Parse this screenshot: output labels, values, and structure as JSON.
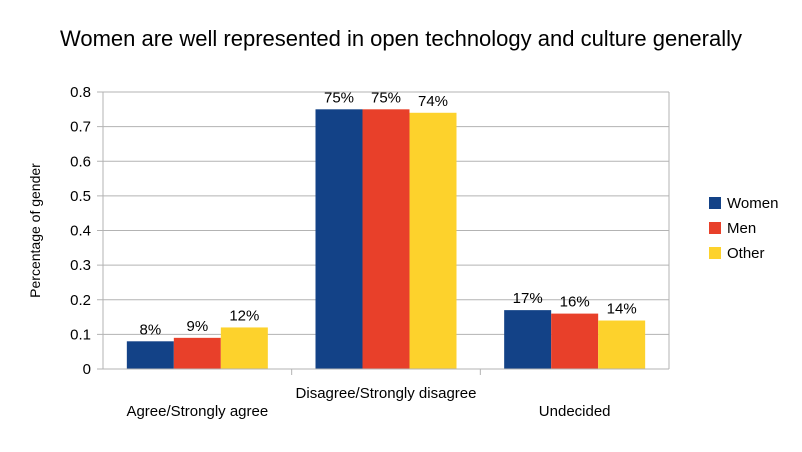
{
  "chart_data": {
    "type": "bar",
    "title": "Women are well represented in open technology and culture generally",
    "ylabel": "Percentage of gender",
    "xlabel": "",
    "ylim": [
      0,
      0.8
    ],
    "yticks": [
      0,
      0.1,
      0.2,
      0.3,
      0.4,
      0.5,
      0.6,
      0.7,
      0.8
    ],
    "grid": true,
    "legend_position": "right",
    "categories": [
      "Agree/Strongly agree",
      "Disagree/Strongly disagree",
      "Undecided"
    ],
    "series": [
      {
        "name": "Women",
        "color": "#134287",
        "values": [
          0.08,
          0.75,
          0.17
        ],
        "labels": [
          "8%",
          "75%",
          "17%"
        ]
      },
      {
        "name": "Men",
        "color": "#e8402a",
        "values": [
          0.09,
          0.75,
          0.16
        ],
        "labels": [
          "9%",
          "75%",
          "16%"
        ]
      },
      {
        "name": "Other",
        "color": "#fdd22c",
        "values": [
          0.12,
          0.74,
          0.14
        ],
        "labels": [
          "12%",
          "74%",
          "14%"
        ]
      }
    ]
  }
}
